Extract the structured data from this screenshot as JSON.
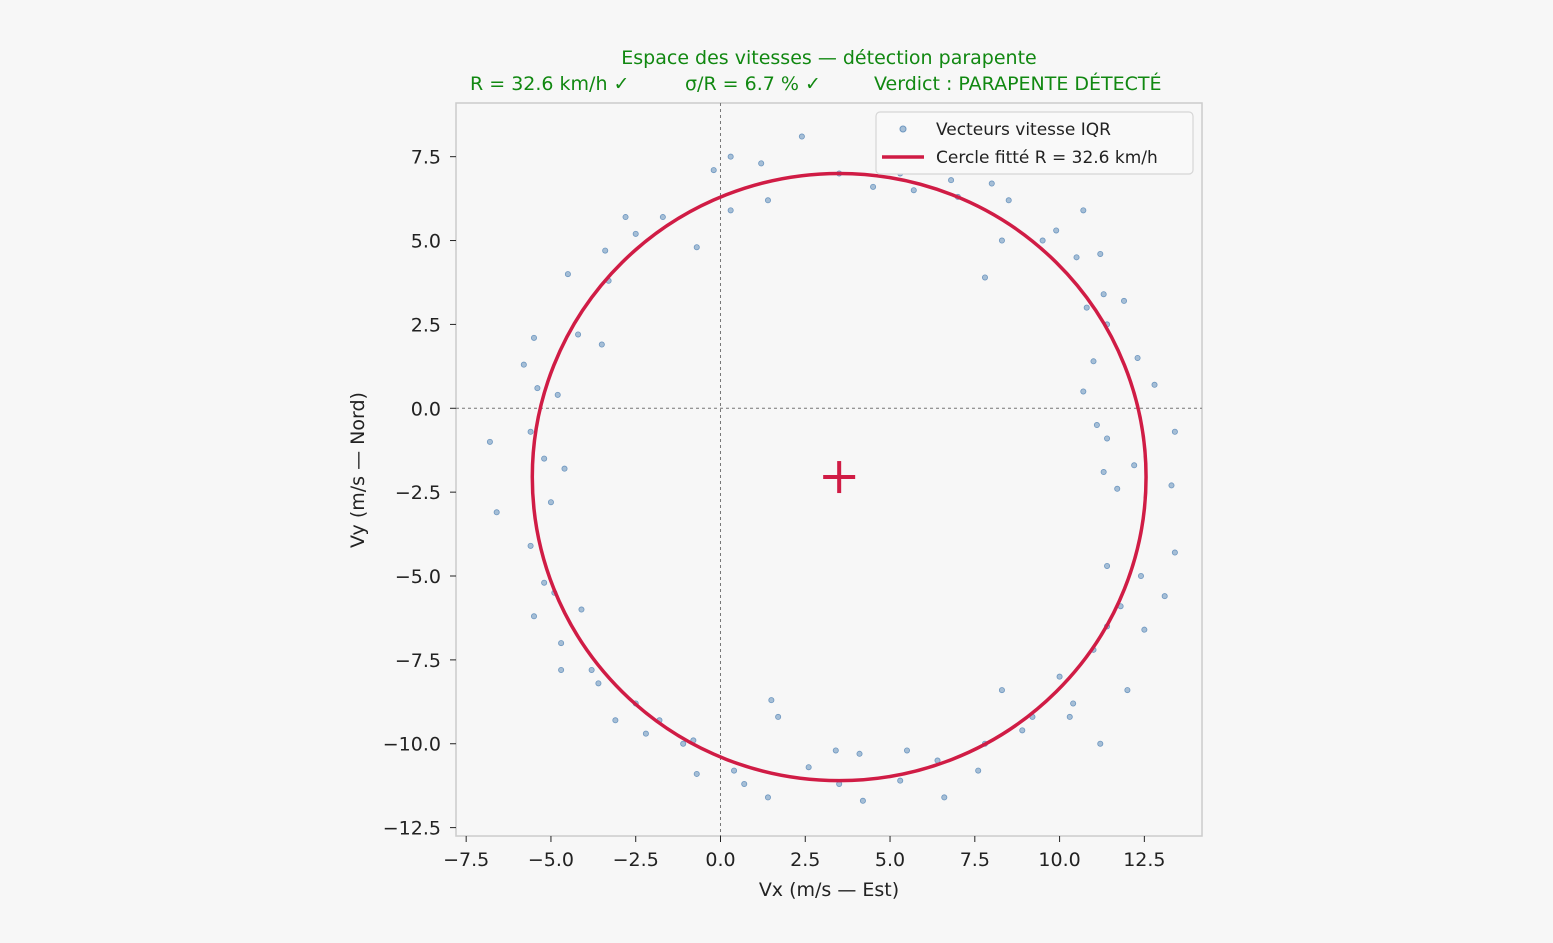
{
  "chart_data": {
    "type": "scatter",
    "title_line1": "Espace des vitesses  —  détection parapente",
    "title_line2_parts": [
      "R = 32.6 km/h  ✓",
      "σ/R = 6.7 %  ✓",
      "Verdict : PARAPENTE DÉTECTÉ"
    ],
    "xlabel": "Vx  (m/s  —  Est)",
    "ylabel": "Vy  (m/s  —  Nord)",
    "xlim": [
      -7.8,
      14.2
    ],
    "ylim": [
      -12.75,
      9.1
    ],
    "xticks": [
      -7.5,
      -5.0,
      -2.5,
      0.0,
      2.5,
      5.0,
      7.5,
      10.0,
      12.5
    ],
    "xtick_labels": [
      "−7.5",
      "−5.0",
      "−2.5",
      "0.0",
      "2.5",
      "5.0",
      "7.5",
      "10.0",
      "12.5"
    ],
    "yticks": [
      7.5,
      5.0,
      2.5,
      0.0,
      -2.5,
      -5.0,
      -7.5,
      -10.0,
      -12.5
    ],
    "ytick_labels": [
      "7.5",
      "5.0",
      "2.5",
      "0.0",
      "−2.5",
      "−5.0",
      "−7.5",
      "−10.0",
      "−12.5"
    ],
    "legend": [
      "Vecteurs vitesse IQR",
      "Cercle fitté  R = 32.6 km/h"
    ],
    "legend_position": "top-right",
    "colors": {
      "points": "#6e97c0",
      "circle": "#d01c45",
      "title": "#118811"
    },
    "circle": {
      "center": [
        3.5,
        -2.05
      ],
      "radius": 9.05
    },
    "center_marker": [
      3.5,
      -2.05
    ],
    "reference_lines": {
      "x": 0,
      "y": 0
    },
    "points_sample": [
      [
        2.4,
        8.1
      ],
      [
        1.2,
        7.3
      ],
      [
        0.3,
        7.5
      ],
      [
        5.3,
        7.0
      ],
      [
        6.8,
        6.8
      ],
      [
        8.5,
        6.2
      ],
      [
        -0.2,
        7.1
      ],
      [
        -1.7,
        5.7
      ],
      [
        -2.8,
        5.7
      ],
      [
        -3.4,
        4.7
      ],
      [
        -4.5,
        4.0
      ],
      [
        -5.5,
        2.1
      ],
      [
        -5.8,
        1.3
      ],
      [
        -5.4,
        0.6
      ],
      [
        -5.6,
        -0.7
      ],
      [
        -6.8,
        -1.0
      ],
      [
        -6.6,
        -3.1
      ],
      [
        -5.2,
        -1.5
      ],
      [
        -5.6,
        -4.1
      ],
      [
        -5.2,
        -5.2
      ],
      [
        -5.5,
        -6.2
      ],
      [
        -4.7,
        -7.0
      ],
      [
        -4.7,
        -7.8
      ],
      [
        -3.6,
        -8.2
      ],
      [
        -3.1,
        -9.3
      ],
      [
        -2.2,
        -9.7
      ],
      [
        -1.1,
        -10.0
      ],
      [
        -0.7,
        -10.9
      ],
      [
        0.7,
        -11.2
      ],
      [
        1.4,
        -11.6
      ],
      [
        2.6,
        -10.7
      ],
      [
        3.5,
        -11.2
      ],
      [
        4.2,
        -11.7
      ],
      [
        5.3,
        -11.1
      ],
      [
        6.6,
        -11.6
      ],
      [
        7.6,
        -10.8
      ],
      [
        8.9,
        -9.6
      ],
      [
        10.3,
        -9.2
      ],
      [
        11.2,
        -10.0
      ],
      [
        12.0,
        -8.4
      ],
      [
        12.5,
        -6.6
      ],
      [
        13.1,
        -5.6
      ],
      [
        13.4,
        -4.3
      ],
      [
        13.3,
        -2.3
      ],
      [
        13.4,
        -0.7
      ],
      [
        12.8,
        0.7
      ],
      [
        12.3,
        1.5
      ],
      [
        11.9,
        3.2
      ],
      [
        11.2,
        4.6
      ],
      [
        10.7,
        5.9
      ],
      [
        10.5,
        4.5
      ],
      [
        9.5,
        5.0
      ],
      [
        7.8,
        3.9
      ],
      [
        8.3,
        5.0
      ],
      [
        7.0,
        6.3
      ],
      [
        3.5,
        7.0
      ],
      [
        4.5,
        6.6
      ],
      [
        5.7,
        6.5
      ],
      [
        1.4,
        6.2
      ],
      [
        0.3,
        5.9
      ],
      [
        -0.7,
        4.8
      ],
      [
        -2.5,
        5.2
      ],
      [
        -3.3,
        3.8
      ],
      [
        -4.2,
        2.2
      ],
      [
        -3.5,
        1.9
      ],
      [
        -4.8,
        0.4
      ],
      [
        -4.6,
        -1.8
      ],
      [
        -5.0,
        -2.8
      ],
      [
        -4.9,
        -5.5
      ],
      [
        -4.1,
        -6.0
      ],
      [
        -3.8,
        -7.8
      ],
      [
        -2.5,
        -8.8
      ],
      [
        -1.8,
        -9.3
      ],
      [
        -0.8,
        -9.9
      ],
      [
        0.4,
        -10.8
      ],
      [
        1.7,
        -9.2
      ],
      [
        1.5,
        -8.7
      ],
      [
        3.4,
        -10.2
      ],
      [
        4.1,
        -10.3
      ],
      [
        5.5,
        -10.2
      ],
      [
        6.4,
        -10.5
      ],
      [
        7.8,
        -10.0
      ],
      [
        8.3,
        -8.4
      ],
      [
        9.2,
        -9.2
      ],
      [
        10.0,
        -8.0
      ],
      [
        10.4,
        -8.8
      ],
      [
        11.0,
        -7.2
      ],
      [
        11.4,
        -6.5
      ],
      [
        11.8,
        -5.9
      ],
      [
        11.4,
        -4.7
      ],
      [
        12.4,
        -5.0
      ],
      [
        11.7,
        -2.4
      ],
      [
        11.3,
        -1.9
      ],
      [
        12.2,
        -1.7
      ],
      [
        11.4,
        -0.9
      ],
      [
        11.1,
        -0.5
      ],
      [
        10.7,
        0.5
      ],
      [
        11.0,
        1.4
      ],
      [
        11.4,
        2.5
      ],
      [
        10.8,
        3.0
      ],
      [
        11.3,
        3.4
      ],
      [
        9.9,
        5.3
      ],
      [
        8.0,
        6.7
      ]
    ]
  }
}
